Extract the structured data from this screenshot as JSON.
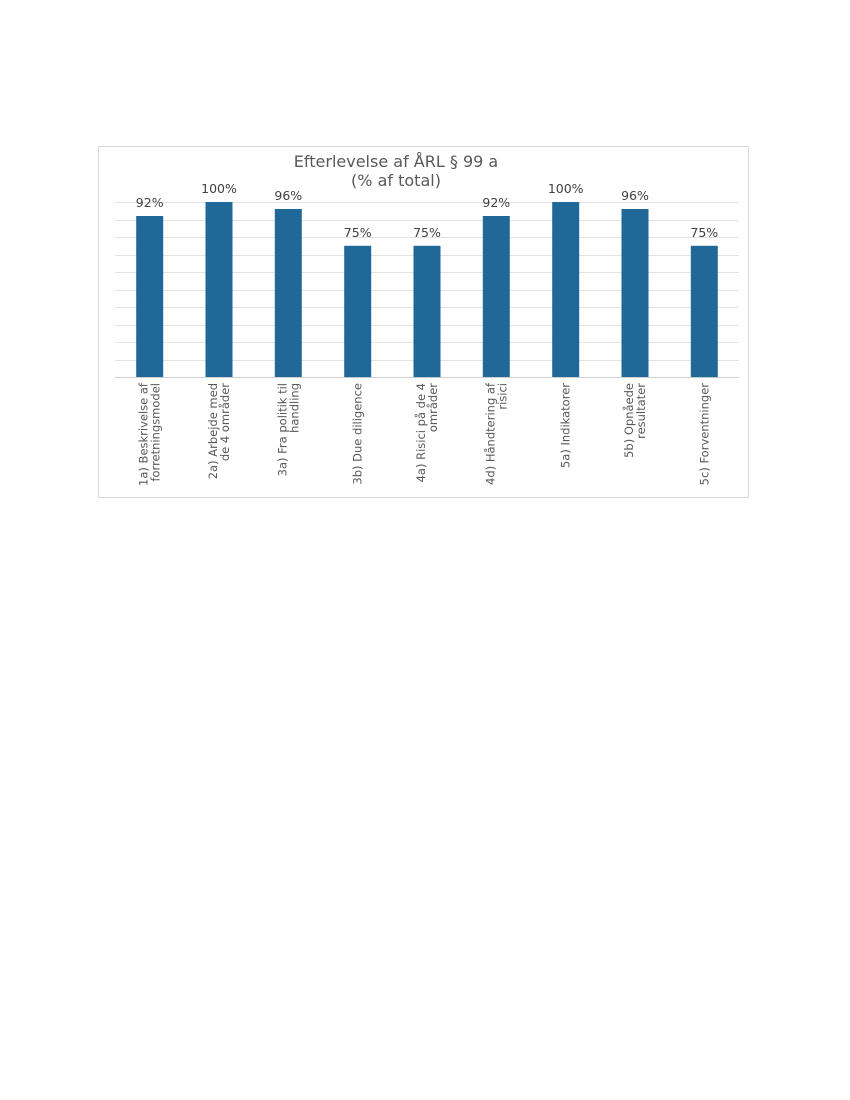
{
  "chart_data": {
    "type": "bar",
    "title": [
      "Efterlevelse af ÅRL § 99 a",
      "(% af total)"
    ],
    "categories": [
      [
        "1a) Beskrivelse af",
        "forretningsmodel"
      ],
      [
        "2a) Arbejde med",
        "de 4 områder"
      ],
      [
        "3a) Fra politik til",
        "handling"
      ],
      [
        "3b) Due diligence"
      ],
      [
        "4a) Risici på de 4",
        "områder"
      ],
      [
        "4d) Håndtering af",
        "risici"
      ],
      [
        "5a) Indikatorer"
      ],
      [
        "5b) Opnåede",
        "resultater"
      ],
      [
        "5c) Forventninger"
      ]
    ],
    "values": [
      92,
      100,
      96,
      75,
      75,
      92,
      100,
      96,
      75
    ],
    "value_labels": [
      "92%",
      "100%",
      "96%",
      "75%",
      "75%",
      "92%",
      "100%",
      "96%",
      "75%"
    ],
    "ylim": [
      0,
      100
    ],
    "grid": true,
    "legend": "none",
    "colors": {
      "bar": "#1f6898",
      "grid": "#e3e3e3",
      "text": "#595959"
    }
  }
}
